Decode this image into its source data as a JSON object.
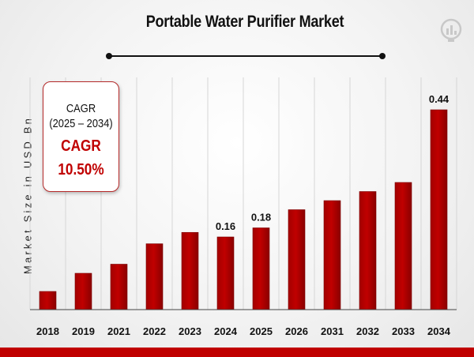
{
  "chart_data": {
    "type": "bar",
    "title": "Portable Water Purifier Market",
    "ylabel": "Market Size in USD Bn",
    "xlabel": "",
    "categories": [
      "2018",
      "2019",
      "2021",
      "2022",
      "2023",
      "2024",
      "2025",
      "2026",
      "2031",
      "2032",
      "2033",
      "2034"
    ],
    "values": [
      0.04,
      0.08,
      0.1,
      0.145,
      0.17,
      0.16,
      0.18,
      0.22,
      0.24,
      0.26,
      0.28,
      0.44
    ],
    "data_labels": {
      "2024": "0.16",
      "2025": "0.18",
      "2034": "0.44"
    },
    "ylim": [
      0,
      0.44
    ],
    "grid": true,
    "bar_color": "#c00000"
  },
  "cagr": {
    "label": "CAGR",
    "period": "(2025 – 2034)",
    "label_large": "CAGR",
    "value": "10.50%"
  },
  "logo_icon": "chart-bulb-logo-icon"
}
